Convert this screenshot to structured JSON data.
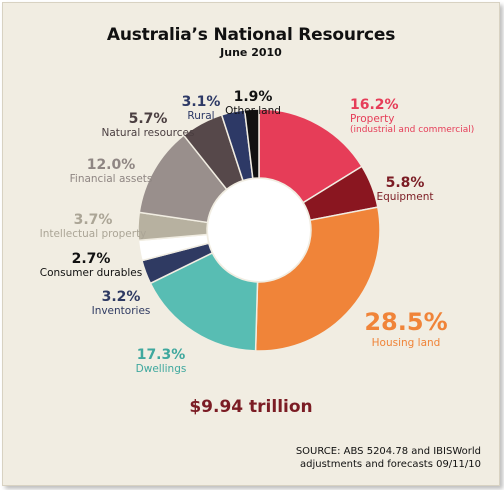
{
  "chart_data": {
    "type": "pie",
    "title": "Australia’s National Resources",
    "subtitle": "June 2010",
    "donut": true,
    "total_label": "$9.94 trillion",
    "source_lines": [
      "SOURCE: ABS 5204.78 and IBISWorld",
      "adjustments and forecasts 09/11/10"
    ],
    "slices": [
      {
        "label": "Property",
        "sublabel": "(industrial and commercial)",
        "value": 16.2,
        "display": "16.2%",
        "color": "#e63d58",
        "text_color": "#e63d58"
      },
      {
        "label": "Equipment",
        "value": 5.8,
        "display": "5.8%",
        "color": "#8a1620",
        "text_color": "#7b1c24"
      },
      {
        "label": "Housing land",
        "value": 28.5,
        "display": "28.5%",
        "color": "#f08439",
        "text_color": "#f08439"
      },
      {
        "label": "Dwellings",
        "value": 17.3,
        "display": "17.3%",
        "color": "#58bdb3",
        "text_color": "#3fa89e"
      },
      {
        "label": "Inventories",
        "value": 3.2,
        "display": "3.2%",
        "color": "#2f3a62",
        "text_color": "#2f3a62"
      },
      {
        "label": "Consumer durables",
        "value": 2.7,
        "display": "2.7%",
        "color": "#ffffff",
        "text_color": "#111111"
      },
      {
        "label": "Intellectual property",
        "value": 3.7,
        "display": "3.7%",
        "color": "#b7b1a0",
        "text_color": "#aba596"
      },
      {
        "label": "Financial assets",
        "value": 12.0,
        "display": "12.0%",
        "color": "#998f8c",
        "text_color": "#8f8683"
      },
      {
        "label": "Natural resources",
        "value": 5.7,
        "display": "5.7%",
        "color": "#56484a",
        "text_color": "#4a3e40"
      },
      {
        "label": "Rural",
        "value": 3.1,
        "display": "3.1%",
        "color": "#2d3966",
        "text_color": "#2d3966"
      },
      {
        "label": "Other land",
        "value": 1.9,
        "display": "1.9%",
        "color": "#111111",
        "text_color": "#111111"
      }
    ]
  }
}
